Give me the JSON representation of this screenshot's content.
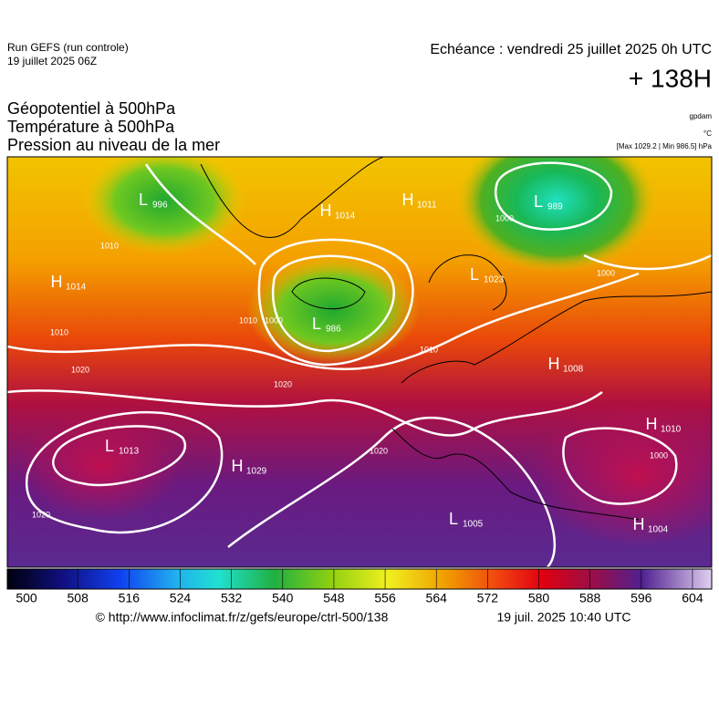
{
  "header": {
    "run": "Run GEFS (run controle)",
    "run_date": "19 juillet 2025 06Z",
    "valid": "Echéance : vendredi 25 juillet 2025 0h UTC",
    "lead": "+ 138H",
    "titles": [
      "Géopotentiel à 500hPa",
      "Température à 500hPa",
      "Pression au niveau de la mer"
    ],
    "units": [
      "gpdam",
      "°C",
      "[Max 1029.2 | Min 986.5] hPa"
    ]
  },
  "map": {
    "centers": [
      {
        "letter": "L",
        "value": "996"
      },
      {
        "letter": "H",
        "value": "1014"
      },
      {
        "letter": "H",
        "value": "1011"
      },
      {
        "letter": "L",
        "value": "989"
      },
      {
        "letter": "H",
        "value": "1014"
      },
      {
        "letter": "L",
        "value": "1023"
      },
      {
        "letter": "L",
        "value": "986"
      },
      {
        "letter": "H",
        "value": "1008"
      },
      {
        "letter": "H",
        "value": "1010"
      },
      {
        "letter": "L",
        "value": "1013"
      },
      {
        "letter": "H",
        "value": "1029"
      },
      {
        "letter": "L",
        "value": "1005"
      },
      {
        "letter": "H",
        "value": "1004"
      }
    ],
    "isobar_labels": [
      "1010",
      "1020",
      "1020",
      "1010",
      "1000",
      "1010",
      "1000",
      "1000",
      "1000",
      "1020",
      "1020",
      "1010"
    ]
  },
  "colorbar": {
    "range": [
      497,
      607
    ],
    "ticks": [
      500,
      508,
      516,
      524,
      532,
      540,
      548,
      556,
      564,
      572,
      580,
      588,
      596,
      604
    ]
  },
  "footer": {
    "source": "© http://www.infoclimat.fr/z/gefs/europe/ctrl-500/138",
    "generated": "19 juil. 2025 10:40 UTC"
  }
}
